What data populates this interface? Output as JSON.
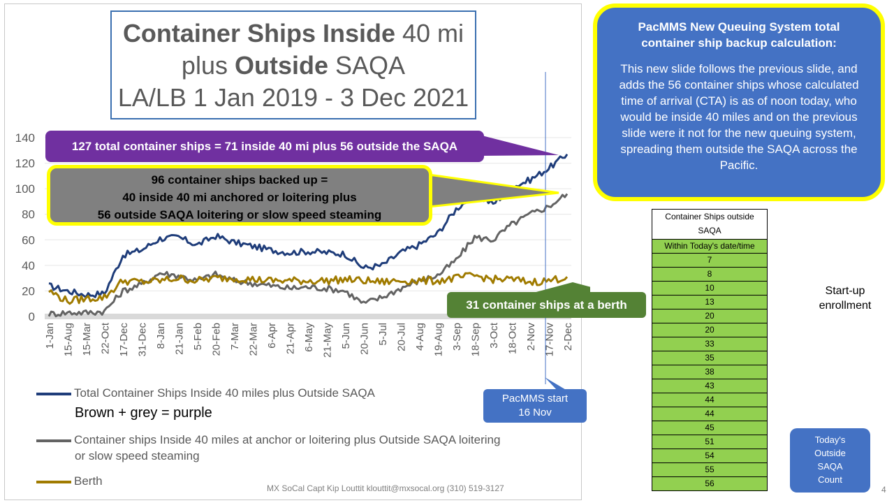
{
  "title": {
    "line1_bold": "Container Ships Inside",
    "line1_rest": "40 mi",
    "line2_pre": "plus",
    "line2_bold": "Outside",
    "line2_rest": "SAQA",
    "line3": "LA/LB 1 Jan 2019 - 3 Dec 2021"
  },
  "callouts": {
    "purple": "127 total container ships = 71 inside 40 mi plus 56 outside the SAQA",
    "grey_line1": "96 container ships backed up =",
    "grey_line2": "40 inside 40 mi anchored or loitering plus",
    "grey_line3": "56 outside SAQA loitering or slow speed steaming",
    "green": "31 container ships at a berth"
  },
  "info_box": {
    "heading_line1": "PacMMS New Queuing System total",
    "heading_line2": "container ship backup calculation:",
    "body": "This new slide follows the previous slide, and adds the 56 container ships whose calculated time of arrival (CTA) is as of noon today, who would be inside 40 miles and on the previous slide were it not for the new queuing system, spreading them outside the SAQA across the Pacific."
  },
  "pacmms_label": {
    "line1": "PacMMS start",
    "line2": "16 Nov"
  },
  "todays_label": {
    "line1": "Today's",
    "line2": "Outside",
    "line3": "SAQA",
    "line4": "Count"
  },
  "startup_label": {
    "line1": "Start-up",
    "line2": "enrollment"
  },
  "table": {
    "header": "Container Ships outside SAQA",
    "subheader": "Within Today's date/time",
    "rows": [
      "7",
      "8",
      "10",
      "13",
      "20",
      "20",
      "33",
      "35",
      "38",
      "43",
      "44",
      "44",
      "45",
      "51",
      "54",
      "55",
      "56"
    ]
  },
  "legend": {
    "total": "Total Container Ships Inside 40 miles plus Outside SAQA",
    "note": "Brown + grey = purple",
    "grey_line1": "Container ships Inside 40 miles at anchor or loitering plus Outside SAQA loitering",
    "grey_line2": "or slow speed steaming",
    "berth": "Berth"
  },
  "footer": "MX SoCal Capt Kip Louttit  klouttit@mxsocal.org  (310) 519-3127",
  "page_number": "4",
  "colors": {
    "total": "#1f3d7a",
    "grey": "#636363",
    "berth": "#a07b00",
    "purple": "#7030a0",
    "green": "#548235",
    "blue": "#4472c4",
    "yellow": "#ffff00"
  },
  "chart_data": {
    "type": "line",
    "ylim": [
      0,
      140
    ],
    "yticks": [
      0,
      20,
      40,
      60,
      80,
      100,
      120,
      140
    ],
    "categories": [
      "1-Jan",
      "15-Aug",
      "15-Mar",
      "22-Oct",
      "17-Dec",
      "31-Dec",
      "8-Jan",
      "21-Jan",
      "5-Feb",
      "20-Feb",
      "7-Mar",
      "22-Mar",
      "6-Apr",
      "21-Apr",
      "6-May",
      "21-May",
      "5-Jun",
      "20-Jun",
      "5-Jul",
      "20-Jul",
      "4-Aug",
      "19-Aug",
      "3-Sep",
      "18-Sep",
      "3-Oct",
      "18-Oct",
      "2-Nov",
      "17-Nov",
      "2-Dec"
    ],
    "series": [
      {
        "name": "Total Container Ships Inside 40 miles plus Outside SAQA",
        "color": "#1f3d7a",
        "values": [
          24,
          20,
          17,
          18,
          48,
          52,
          61,
          62,
          56,
          63,
          58,
          55,
          52,
          50,
          51,
          50,
          49,
          38,
          40,
          50,
          56,
          65,
          84,
          96,
          88,
          101,
          107,
          116,
          127
        ]
      },
      {
        "name": "Container ships Inside 40 miles at anchor or loitering plus Outside SAQA loitering or slow speed steaming",
        "color": "#636363",
        "values": [
          2,
          3,
          3,
          4,
          20,
          25,
          34,
          32,
          28,
          33,
          28,
          26,
          24,
          22,
          23,
          22,
          20,
          10,
          15,
          22,
          28,
          32,
          44,
          62,
          60,
          72,
          80,
          86,
          96
        ]
      },
      {
        "name": "Berth",
        "color": "#a07b00",
        "values": [
          20,
          12,
          14,
          15,
          28,
          27,
          28,
          30,
          28,
          30,
          30,
          29,
          28,
          28,
          28,
          28,
          29,
          28,
          27,
          28,
          28,
          28,
          30,
          32,
          29,
          29,
          27,
          28,
          31
        ]
      }
    ]
  }
}
